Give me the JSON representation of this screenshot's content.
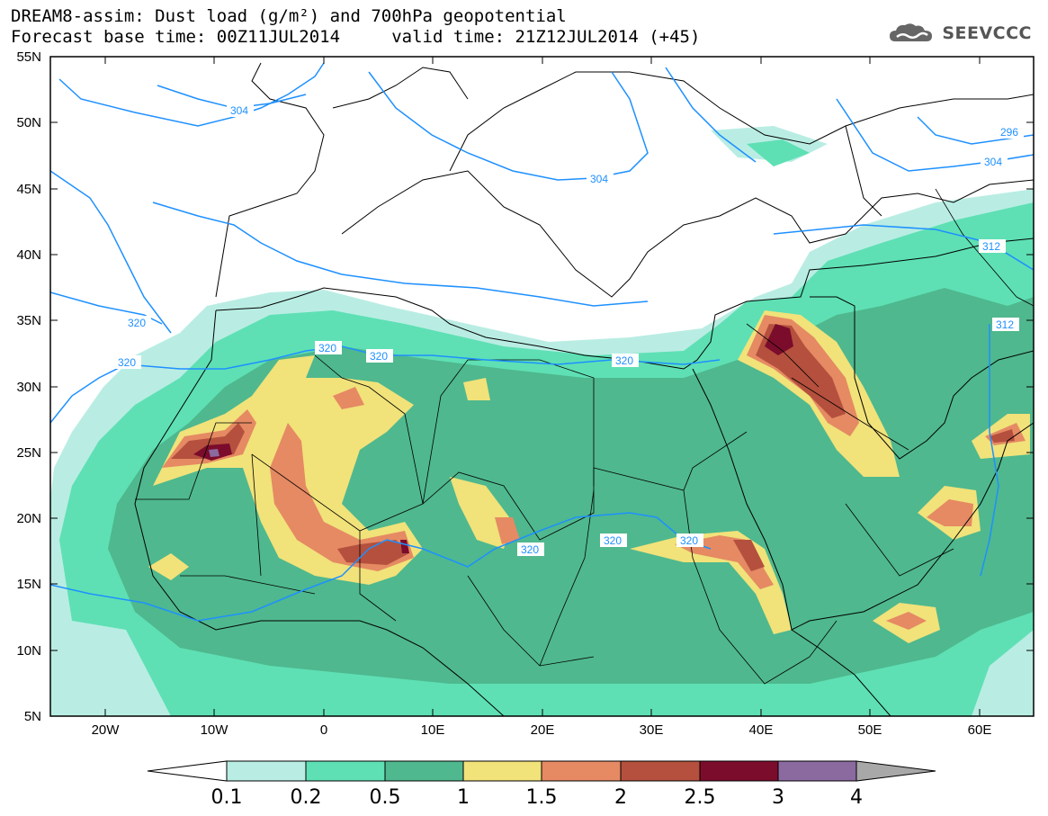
{
  "header": {
    "title_line1": "DREAM8-assim: Dust load (g/m²) and 700hPa geopotential",
    "title_line2": "Forecast base time: 00Z11JUL2014     valid time: 21Z12JUL2014 (+45)",
    "logo_text": "SEEVCCC"
  },
  "map": {
    "lat_labels": [
      "55N",
      "50N",
      "45N",
      "40N",
      "35N",
      "30N",
      "25N",
      "20N",
      "15N",
      "10N",
      "5N"
    ],
    "lon_labels": [
      "20W",
      "10W",
      "0",
      "10E",
      "20E",
      "30E",
      "40E",
      "50E",
      "60E"
    ],
    "contour_labels": [
      "304",
      "304",
      "304",
      "296",
      "312",
      "312",
      "320",
      "320",
      "320",
      "320",
      "320",
      "320",
      "320",
      "320"
    ],
    "colors": {
      "frame": "#000000",
      "coast": "#000000",
      "contour": "#1e90ff"
    }
  },
  "colorbar": {
    "levels": [
      "0.1",
      "0.2",
      "0.5",
      "1",
      "1.5",
      "2",
      "2.5",
      "3",
      "4"
    ],
    "colors": [
      "#b9ede3",
      "#5ee0b4",
      "#4fb88e",
      "#f1e27a",
      "#e58a63",
      "#b4503d",
      "#7b0c2b",
      "#8b6a9f",
      "#a8a8a8"
    ]
  }
}
